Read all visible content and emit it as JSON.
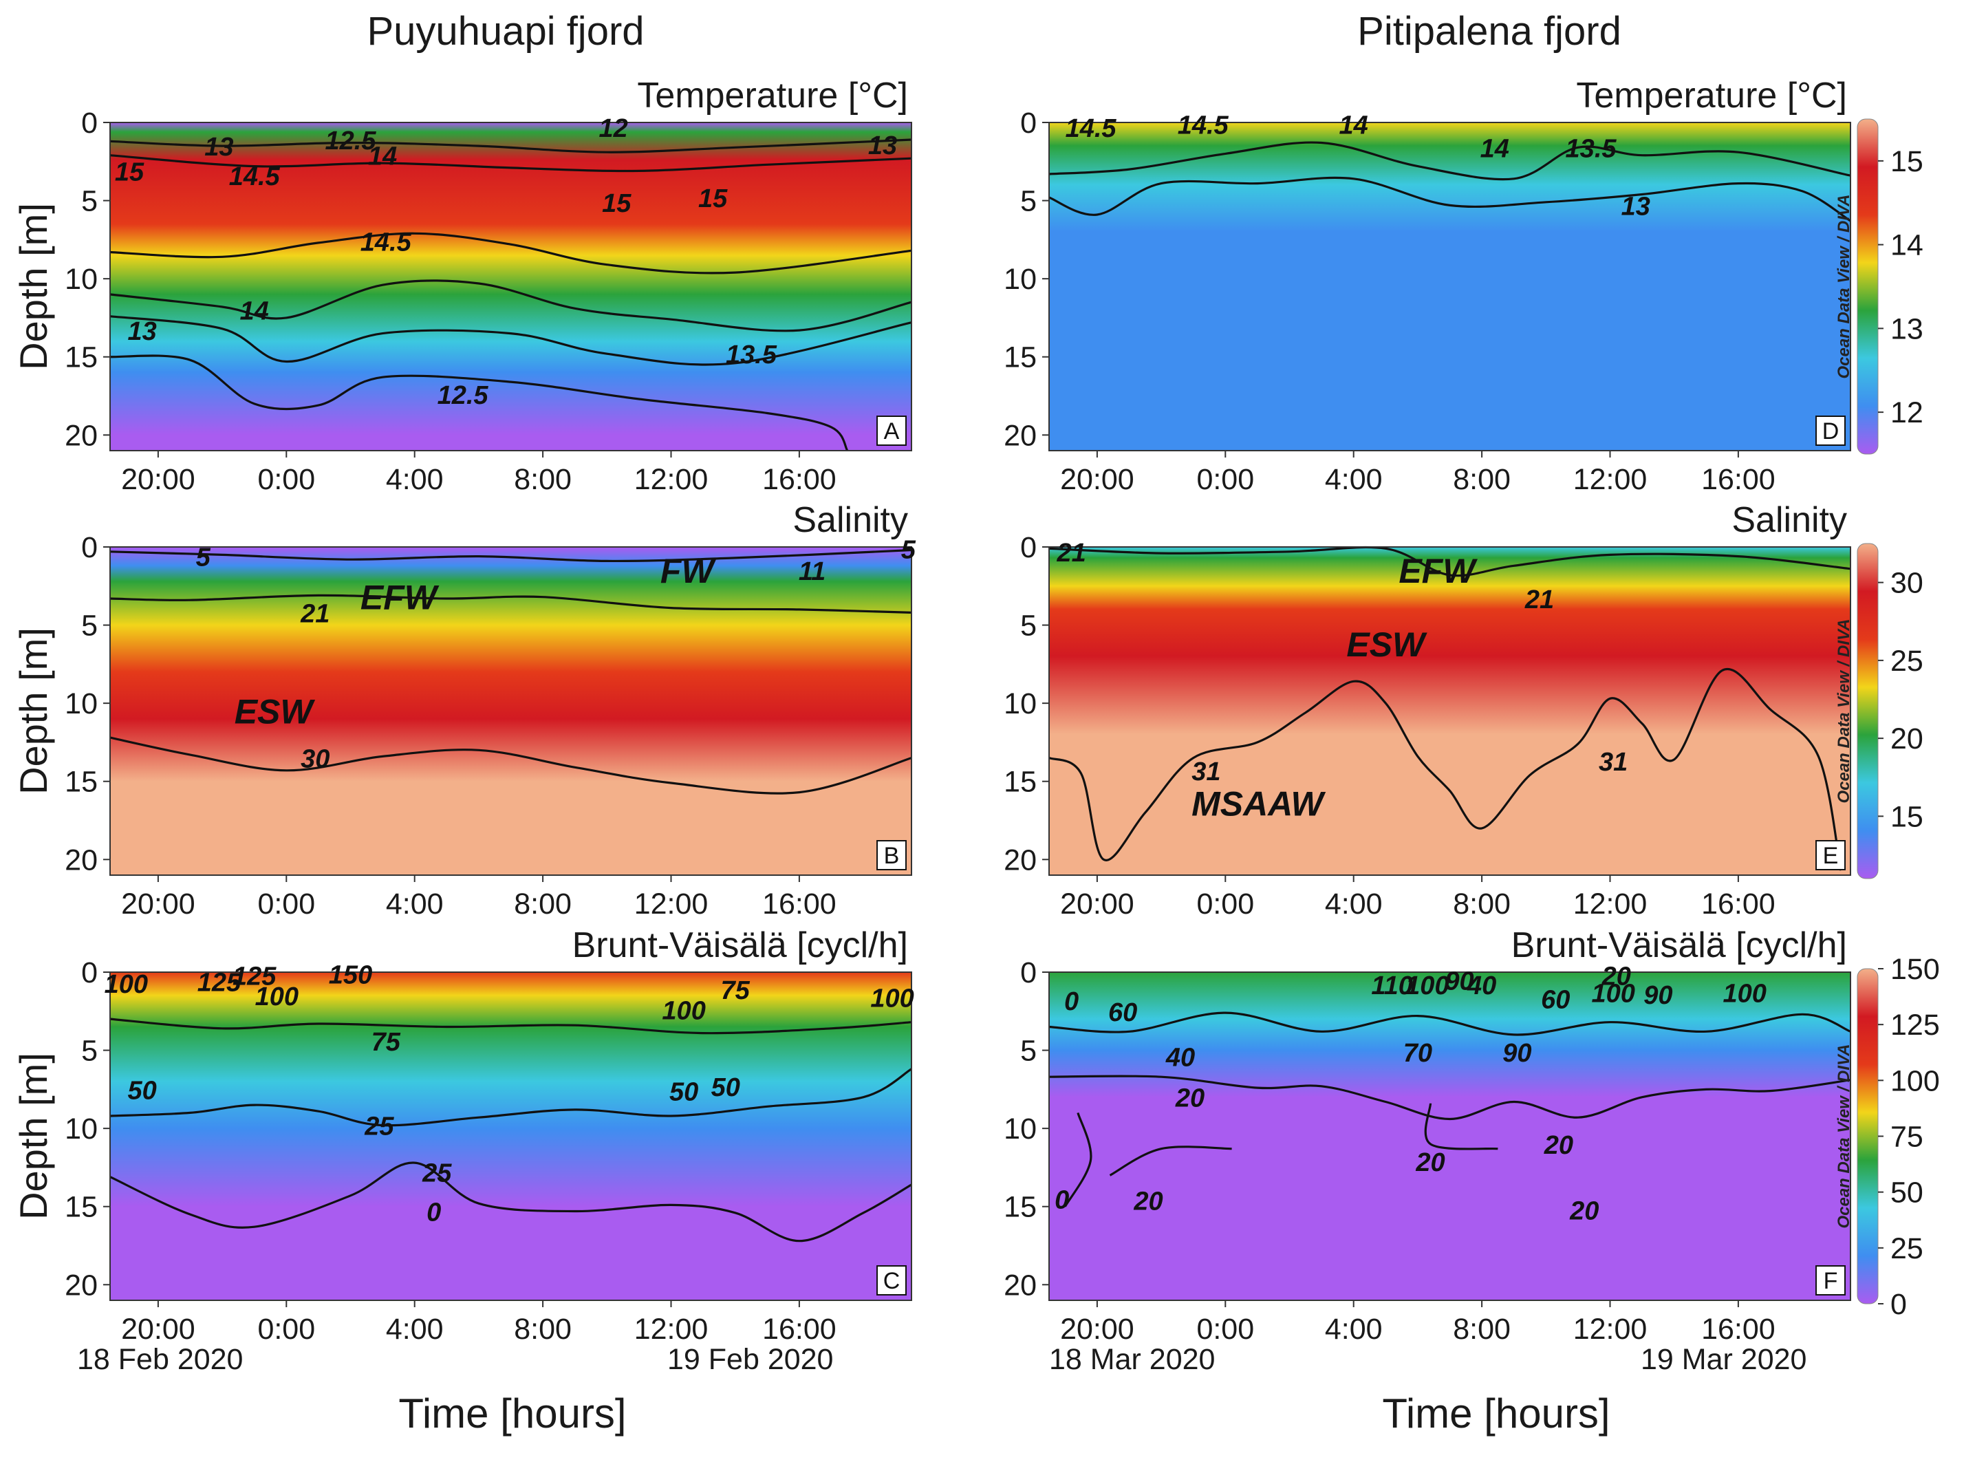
{
  "columns": [
    {
      "title": "Puyuhuapi fjord",
      "dates": [
        "18 Feb 2020",
        "19 Feb 2020"
      ]
    },
    {
      "title": "Pitipalena fjord",
      "dates": [
        "18 Mar 2020",
        "19 Mar 2020"
      ]
    }
  ],
  "xlabel": "Time [hours]",
  "ylabel": "Depth [m]",
  "time_ticks": [
    "20:00",
    "0:00",
    "4:00",
    "8:00",
    "12:00",
    "16:00"
  ],
  "depth_ticks": [
    "0",
    "5",
    "10",
    "15",
    "20"
  ],
  "colorbar_credit": "Ocean Data View / DIVA",
  "colors": {
    "scale": [
      "#a95cf0",
      "#3f8ef0",
      "#3cc8e0",
      "#2ba33c",
      "#f2d51a",
      "#e43a1a",
      "#d21a22",
      "#f3b08a"
    ]
  },
  "chart_data": [
    {
      "type": "heatmap",
      "id": "A",
      "title": "Temperature [°C]",
      "column": 0,
      "ylim": [
        0,
        21
      ],
      "time_range_hours": [
        -5.5,
        19.5
      ],
      "contour_labels": [
        "13",
        "12.5",
        "12",
        "13",
        "15",
        "14.5",
        "14",
        "15",
        "15",
        "14.5",
        "14",
        "13",
        "13.5",
        "12.5"
      ],
      "water_masses": []
    },
    {
      "type": "heatmap",
      "id": "B",
      "title": "Salinity",
      "column": 0,
      "ylim": [
        0,
        21
      ],
      "time_range_hours": [
        -5.5,
        19.5
      ],
      "contour_labels": [
        "5",
        "11",
        "5",
        "21",
        "30"
      ],
      "water_masses": [
        "FW",
        "EFW",
        "ESW"
      ]
    },
    {
      "type": "heatmap",
      "id": "C",
      "title": "Brunt-Väisälä [cycl/h]",
      "column": 0,
      "ylim": [
        0,
        21
      ],
      "time_range_hours": [
        -5.5,
        19.5
      ],
      "contour_labels": [
        "100",
        "125",
        "100",
        "125",
        "150",
        "75",
        "100",
        "100",
        "75",
        "50",
        "50",
        "50",
        "25",
        "25",
        "0"
      ],
      "water_masses": []
    },
    {
      "type": "heatmap",
      "id": "D",
      "title": "Temperature [°C]",
      "column": 1,
      "ylim": [
        0,
        21
      ],
      "time_range_hours": [
        -5.5,
        19.5
      ],
      "contour_labels": [
        "14.5",
        "14.5",
        "14",
        "14",
        "13.5",
        "13"
      ],
      "water_masses": [],
      "colorbar": {
        "ticks": [
          "15",
          "14",
          "13",
          "12"
        ],
        "range": [
          11.5,
          15.5
        ]
      }
    },
    {
      "type": "heatmap",
      "id": "E",
      "title": "Salinity",
      "column": 1,
      "ylim": [
        0,
        21
      ],
      "time_range_hours": [
        -5.5,
        19.5
      ],
      "contour_labels": [
        "21",
        "21",
        "31",
        "31"
      ],
      "water_masses": [
        "EFW",
        "ESW",
        "MSAAW"
      ],
      "colorbar": {
        "ticks": [
          "30",
          "25",
          "20",
          "15"
        ],
        "range": [
          11,
          32.5
        ]
      }
    },
    {
      "type": "heatmap",
      "id": "F",
      "title": "Brunt-Väisälä [cycl/h]",
      "column": 1,
      "ylim": [
        0,
        21
      ],
      "time_range_hours": [
        -5.5,
        19.5
      ],
      "contour_labels": [
        "110",
        "90",
        "100",
        "40",
        "20",
        "60",
        "90",
        "100",
        "100",
        "60",
        "40",
        "70",
        "90",
        "20",
        "20",
        "20",
        "20",
        "20",
        "0",
        "0"
      ],
      "water_masses": [],
      "colorbar": {
        "ticks": [
          "150",
          "125",
          "100",
          "75",
          "50",
          "25",
          "0"
        ],
        "range": [
          0,
          150
        ]
      }
    }
  ]
}
